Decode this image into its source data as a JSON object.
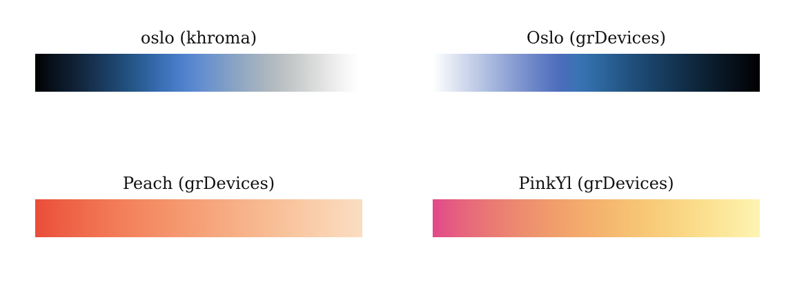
{
  "chart_data": [
    {
      "type": "heatmap",
      "title": "oslo (khroma)",
      "colors": [
        "#000000",
        "#07101A",
        "#0D1C2E",
        "#132942",
        "#193759",
        "#1E4670",
        "#245587",
        "#2E64A0",
        "#3C72B8",
        "#4C7FCB",
        "#5F8BCF",
        "#7196CC",
        "#83A0C6",
        "#95AAC2",
        "#A6B3C0",
        "#B7BDC1",
        "#C6C9CA",
        "#D6D7D7",
        "#E6E6E6",
        "#F4F4F4",
        "#FFFFFF"
      ],
      "widthFraction": 0.99
    },
    {
      "type": "heatmap",
      "title": "Oslo (grDevices)",
      "colors": [
        "#FFFFFF",
        "#E4E9F4",
        "#C9D3EA",
        "#AEBDE0",
        "#94A7D6",
        "#7B92CD",
        "#627DC4",
        "#4C6DBC",
        "#3A73B5",
        "#2F6AA4",
        "#275C8F",
        "#204F7C",
        "#1A4369",
        "#153857",
        "#102C45",
        "#0C2134",
        "#081623",
        "#040B12",
        "#000000"
      ],
      "widthFraction": 1.0
    },
    {
      "type": "heatmap",
      "title": "Peach (grDevices)",
      "colors": [
        "#EA4D3A",
        "#ED6045",
        "#F07050",
        "#F3805B",
        "#F48D66",
        "#F59A71",
        "#F6A67D",
        "#F7B289",
        "#F8BE96",
        "#F9C9A4",
        "#FAD4B3",
        "#FADDC2"
      ],
      "widthFraction": 1.0
    },
    {
      "type": "heatmap",
      "title": "PinkYl (grDevices)",
      "colors": [
        "#E2488A",
        "#E6657D",
        "#EA7A74",
        "#ED8C6F",
        "#F09C6C",
        "#F3AB6C",
        "#F5B96F",
        "#F7C675",
        "#F9D27F",
        "#FBDE8D",
        "#FCE99E",
        "#FDF4B2"
      ],
      "widthFraction": 1.0
    }
  ]
}
